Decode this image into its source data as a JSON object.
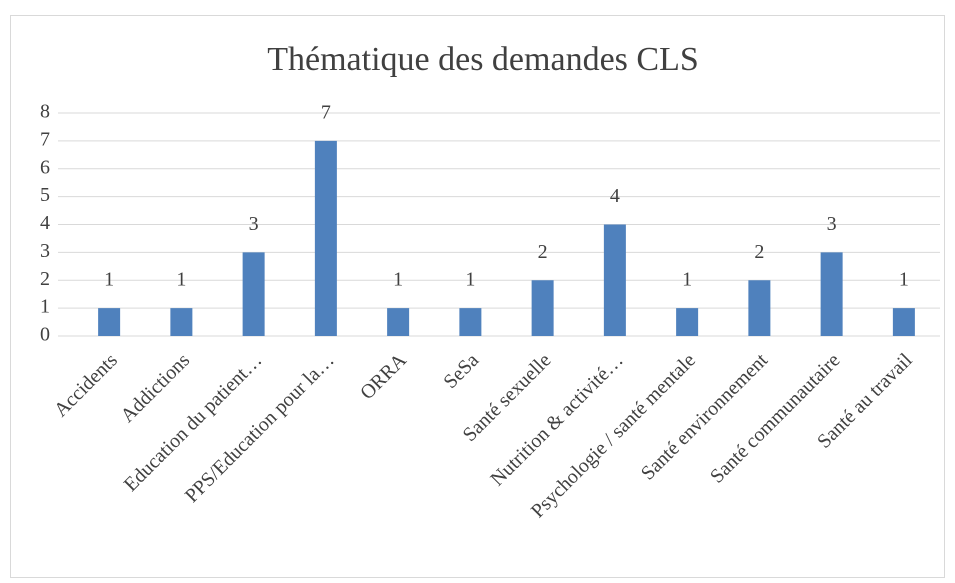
{
  "chart_data": {
    "type": "bar",
    "title": "Thématique des demandes CLS",
    "categories": [
      "Accidents",
      "Addictions",
      "Education du patient…",
      "PPS/Education pour la…",
      "ORRA",
      "SeSa",
      "Santé sexuelle",
      "Nutrition & activité…",
      "Psychologie / santé mentale",
      "Santé environnement",
      "Santé communautaire",
      "Santé au travail"
    ],
    "values": [
      1,
      1,
      3,
      7,
      1,
      1,
      2,
      4,
      1,
      2,
      3,
      1
    ],
    "color": "#4f81bd",
    "ylim": [
      0,
      8
    ],
    "yticks": [
      0,
      1,
      2,
      3,
      4,
      5,
      6,
      7,
      8
    ],
    "grid": true
  }
}
